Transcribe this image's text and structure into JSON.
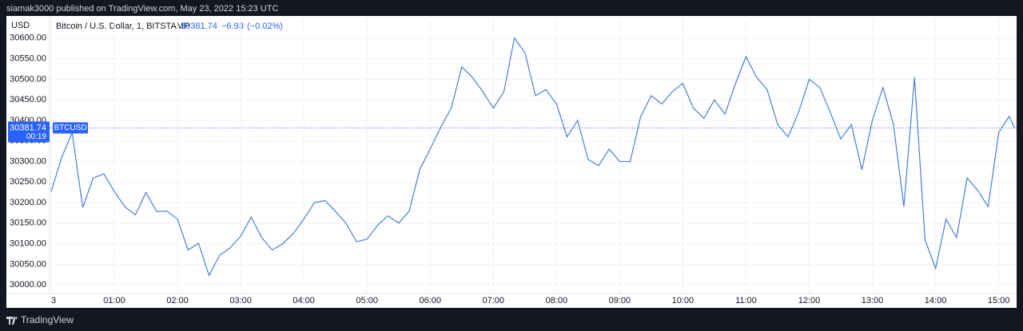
{
  "header": {
    "published": "siamak3000 published on TradingView.com, May 23, 2022 15:23 UTC"
  },
  "footer": {
    "brand": "TradingView"
  },
  "chart_data": {
    "type": "line",
    "title": "Bitcoin / U.S. Dollar, 1, BITSTAMP",
    "currency": "USD",
    "symbol": "BTCUSD",
    "last_price": 30381.74,
    "change": "−6.93",
    "change_pct": "(−0.02%)",
    "countdown": "00:19",
    "color": "#4a7fd6",
    "x": [
      "00:00",
      "00:10",
      "00:20",
      "00:30",
      "00:40",
      "00:50",
      "01:00",
      "01:10",
      "01:20",
      "01:30",
      "01:40",
      "01:50",
      "02:00",
      "02:10",
      "02:20",
      "02:30",
      "02:40",
      "02:50",
      "03:00",
      "03:10",
      "03:20",
      "03:30",
      "03:40",
      "03:50",
      "04:00",
      "04:10",
      "04:20",
      "04:30",
      "04:40",
      "04:50",
      "05:00",
      "05:10",
      "05:20",
      "05:30",
      "05:40",
      "05:50",
      "06:00",
      "06:10",
      "06:20",
      "06:30",
      "06:40",
      "06:50",
      "07:00",
      "07:10",
      "07:20",
      "07:30",
      "07:40",
      "07:50",
      "08:00",
      "08:10",
      "08:20",
      "08:30",
      "08:40",
      "08:50",
      "09:00",
      "09:10",
      "09:20",
      "09:30",
      "09:40",
      "09:50",
      "10:00",
      "10:10",
      "10:20",
      "10:30",
      "10:40",
      "10:50",
      "11:00",
      "11:10",
      "11:20",
      "11:30",
      "11:40",
      "11:50",
      "12:00",
      "12:10",
      "12:20",
      "12:30",
      "12:40",
      "12:50",
      "13:00",
      "13:10",
      "13:20",
      "13:30",
      "13:40",
      "13:50",
      "14:00",
      "14:10",
      "14:20",
      "14:30",
      "14:40",
      "14:50",
      "15:00",
      "15:10",
      "15:15"
    ],
    "values": [
      30227,
      30310,
      30370,
      30188,
      30260,
      30270,
      30227,
      30190,
      30170,
      30225,
      30179,
      30179,
      30160,
      30085,
      30101,
      30023,
      30072,
      30090,
      30118,
      30165,
      30115,
      30085,
      30100,
      30125,
      30160,
      30200,
      30205,
      30179,
      30150,
      30105,
      30111,
      30145,
      30168,
      30150,
      30179,
      30280,
      30330,
      30383,
      30430,
      30530,
      30505,
      30470,
      30430,
      30470,
      30600,
      30565,
      30460,
      30475,
      30440,
      30360,
      30400,
      30305,
      30290,
      30330,
      30300,
      30300,
      30410,
      30460,
      30440,
      30470,
      30490,
      30430,
      30405,
      30450,
      30415,
      30490,
      30555,
      30505,
      30475,
      30390,
      30360,
      30420,
      30500,
      30480,
      30420,
      30355,
      30390,
      30280,
      30400,
      30480,
      30390,
      30190,
      30505,
      30110,
      30040,
      30160,
      30115,
      30260,
      30230,
      30190,
      30370,
      30410,
      30381.74
    ],
    "xlim": [
      "00:00",
      "15:17"
    ],
    "xticks": [
      {
        "value": "00:00",
        "label": "3"
      },
      "01:00",
      "02:00",
      "03:00",
      "04:00",
      "05:00",
      "06:00",
      "07:00",
      "08:00",
      "09:00",
      "10:00",
      "11:00",
      "12:00",
      "13:00",
      "14:00",
      "15:00"
    ],
    "ylim": [
      29979,
      30654
    ],
    "yticks": [
      {
        "value": 30000,
        "label": "30000.00"
      },
      {
        "value": 30050,
        "label": "30050.00"
      },
      {
        "value": 30100,
        "label": "30100.00"
      },
      {
        "value": 30150,
        "label": "30150.00"
      },
      {
        "value": 30200,
        "label": "30200.00"
      },
      {
        "value": 30250,
        "label": "30250.00"
      },
      {
        "value": 30300,
        "label": "30300.00"
      },
      {
        "value": 30350,
        "label": "30350.00"
      },
      {
        "value": 30400,
        "label": "30400.00"
      },
      {
        "value": 30450,
        "label": "30450.00"
      },
      {
        "value": 30500,
        "label": "30500.00"
      },
      {
        "value": 30550,
        "label": "30550.00"
      },
      {
        "value": 30600,
        "label": "30600.00"
      }
    ],
    "grid": true
  }
}
